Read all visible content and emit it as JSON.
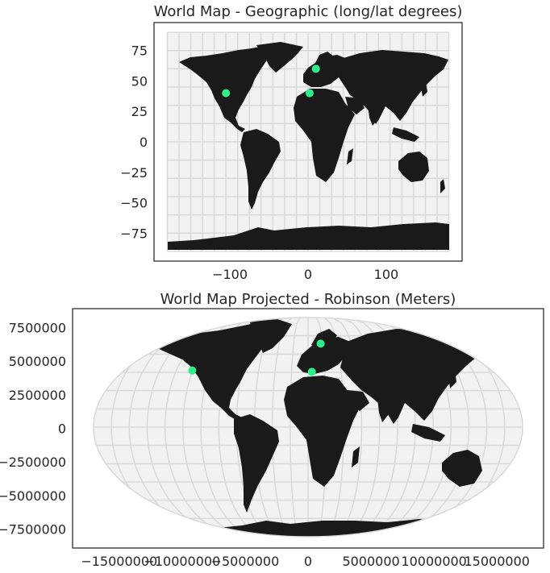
{
  "chart_data": [
    {
      "type": "scatter",
      "title": "World Map - Geographic (long/lat degrees)",
      "x_ticks": [
        -100,
        0,
        100
      ],
      "y_ticks": [
        75,
        50,
        25,
        0,
        -25,
        -50,
        -75
      ],
      "xlim": [
        -197,
        197
      ],
      "ylim": [
        -98,
        98
      ],
      "graticule_step_degrees": 15,
      "points": [
        {
          "x": -105,
          "y": 40
        },
        {
          "x": 2,
          "y": 40
        },
        {
          "x": 10,
          "y": 60
        }
      ]
    },
    {
      "type": "scatter",
      "title": "World Map Projected - Robinson (Meters)",
      "x_ticks": [
        -15000000,
        -10000000,
        -5000000,
        0,
        5000000,
        10000000,
        15000000
      ],
      "x_tick_labels": [
        "−15000000",
        "−10000000",
        "−5000000",
        "0",
        "5000000",
        "10000000",
        "15000000"
      ],
      "y_ticks": [
        7500000,
        5000000,
        2500000,
        0,
        -2500000,
        -5000000,
        -7500000
      ],
      "y_tick_labels": [
        "7500000",
        "5000000",
        "2500000",
        "0",
        "−2500000",
        "−5000000",
        "−7500000"
      ],
      "xlim": [
        -18700000,
        18700000
      ],
      "ylim": [
        -8900000,
        8900000
      ],
      "points": [
        {
          "x": -9200000,
          "y": 4300000
        },
        {
          "x": 300000,
          "y": 4200000
        },
        {
          "x": 1000000,
          "y": 6300000
        }
      ]
    }
  ],
  "colors": {
    "land": "#1a1a1a",
    "ocean": "#f2f2f2",
    "grid": "#d9d9d9",
    "point": "#2ef08a",
    "frame": "#262626"
  }
}
